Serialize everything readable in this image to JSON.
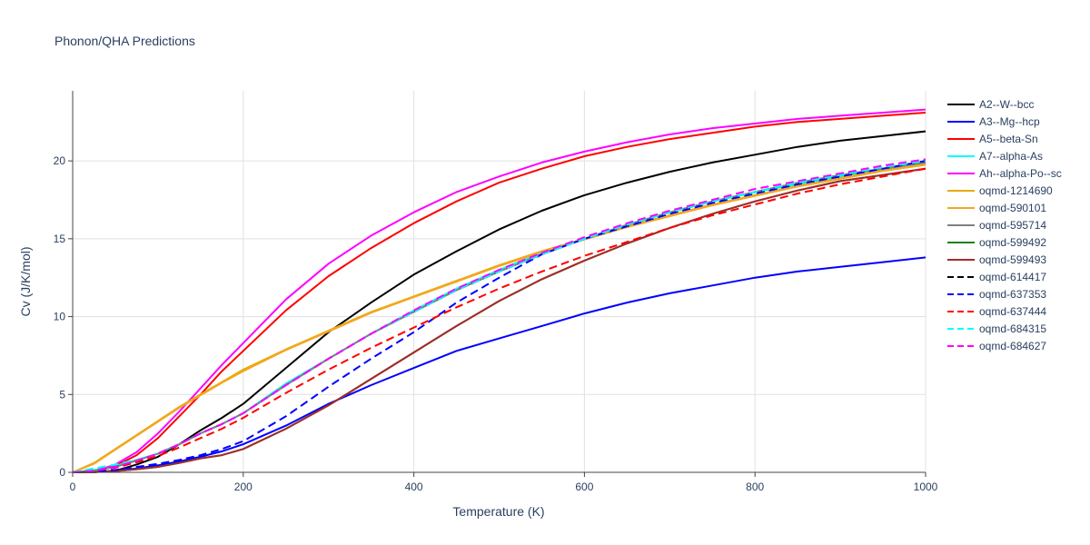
{
  "chart_data": {
    "type": "line",
    "title": "Phonon/QHA Predictions",
    "xlabel": "Temperature (K)",
    "ylabel": "Cv (J/K/mol)",
    "xlim": [
      0,
      1000
    ],
    "ylim": [
      0,
      24.5
    ],
    "xticks": [
      0,
      200,
      400,
      600,
      800,
      1000
    ],
    "yticks": [
      0,
      5,
      10,
      15,
      20
    ],
    "grid": true,
    "legend_position": "right",
    "series": [
      {
        "name": "A2--W--bcc",
        "color": "#000000",
        "dash": "solid",
        "x": [
          0,
          25,
          50,
          75,
          100,
          125,
          150,
          175,
          200,
          250,
          300,
          350,
          400,
          450,
          500,
          550,
          600,
          650,
          700,
          750,
          800,
          850,
          900,
          950,
          1000
        ],
        "y": [
          0,
          0.01,
          0.1,
          0.5,
          1.0,
          1.8,
          2.7,
          3.5,
          4.4,
          6.7,
          9.0,
          10.9,
          12.7,
          14.2,
          15.6,
          16.8,
          17.8,
          18.6,
          19.3,
          19.9,
          20.4,
          20.9,
          21.3,
          21.6,
          21.9
        ]
      },
      {
        "name": "A3--Mg--hcp",
        "color": "#0000ff",
        "dash": "solid",
        "x": [
          0,
          25,
          50,
          75,
          100,
          125,
          150,
          175,
          200,
          250,
          300,
          350,
          400,
          450,
          500,
          550,
          600,
          650,
          700,
          750,
          800,
          850,
          900,
          950,
          1000
        ],
        "y": [
          0,
          0.02,
          0.1,
          0.25,
          0.45,
          0.7,
          1.0,
          1.35,
          1.8,
          3.0,
          4.4,
          5.6,
          6.7,
          7.8,
          8.6,
          9.4,
          10.2,
          10.9,
          11.5,
          12.0,
          12.5,
          12.9,
          13.2,
          13.5,
          13.8
        ]
      },
      {
        "name": "A5--beta-Sn",
        "color": "#ff0000",
        "dash": "solid",
        "x": [
          0,
          25,
          50,
          75,
          100,
          125,
          150,
          175,
          200,
          250,
          300,
          350,
          400,
          450,
          500,
          550,
          600,
          650,
          700,
          750,
          800,
          850,
          900,
          950,
          1000
        ],
        "y": [
          0,
          0.05,
          0.4,
          1.1,
          2.2,
          3.6,
          5.0,
          6.5,
          7.8,
          10.4,
          12.6,
          14.4,
          16.0,
          17.4,
          18.6,
          19.5,
          20.3,
          20.9,
          21.4,
          21.8,
          22.2,
          22.5,
          22.7,
          22.9,
          23.1
        ]
      },
      {
        "name": "A7--alpha-As",
        "color": "#00ffff",
        "dash": "solid",
        "x": [
          0,
          25,
          50,
          75,
          100,
          125,
          150,
          175,
          200,
          250,
          300,
          350,
          400,
          450,
          500,
          550,
          600,
          650,
          700,
          750,
          800,
          850,
          900,
          950,
          1000
        ],
        "y": [
          0,
          0.15,
          0.4,
          0.8,
          1.2,
          1.8,
          2.5,
          3.1,
          3.8,
          5.7,
          7.3,
          8.9,
          10.4,
          11.8,
          13.0,
          14.1,
          15.0,
          15.9,
          16.7,
          17.4,
          18.0,
          18.5,
          19.0,
          19.4,
          19.9
        ]
      },
      {
        "name": "Ah--alpha-Po--sc",
        "color": "#ff00ff",
        "dash": "solid",
        "x": [
          0,
          25,
          50,
          75,
          100,
          125,
          150,
          175,
          200,
          250,
          300,
          350,
          400,
          450,
          500,
          550,
          600,
          650,
          700,
          750,
          800,
          850,
          900,
          950,
          1000
        ],
        "y": [
          0,
          0.05,
          0.5,
          1.3,
          2.5,
          3.9,
          5.4,
          6.9,
          8.3,
          11.1,
          13.4,
          15.2,
          16.7,
          18.0,
          19.0,
          19.9,
          20.6,
          21.2,
          21.7,
          22.1,
          22.4,
          22.7,
          22.9,
          23.1,
          23.3
        ]
      },
      {
        "name": "oqmd-1214690",
        "color": "#e6ab02",
        "dash": "solid",
        "x": [
          0,
          25,
          50,
          75,
          100,
          125,
          150,
          175,
          200,
          250,
          300,
          350,
          400,
          450,
          500,
          550,
          600,
          650,
          700,
          750,
          800,
          850,
          900,
          950,
          1000
        ],
        "y": [
          0,
          0.6,
          1.5,
          2.4,
          3.3,
          4.2,
          5.0,
          5.8,
          6.6,
          7.9,
          9.1,
          10.3,
          11.3,
          12.3,
          13.3,
          14.2,
          15.0,
          15.8,
          16.5,
          17.2,
          17.8,
          18.4,
          18.9,
          19.4,
          19.8
        ]
      },
      {
        "name": "oqmd-590101",
        "color": "#f5a623",
        "dash": "solid",
        "x": [
          0,
          25,
          50,
          75,
          100,
          125,
          150,
          175,
          200,
          250,
          300,
          350,
          400,
          450,
          500,
          550,
          600,
          650,
          700,
          750,
          800,
          850,
          900,
          950,
          1000
        ],
        "y": [
          0,
          0.55,
          1.45,
          2.35,
          3.25,
          4.15,
          4.95,
          5.75,
          6.5,
          7.85,
          9.05,
          10.25,
          11.25,
          12.25,
          13.25,
          14.15,
          14.95,
          15.75,
          16.45,
          17.15,
          17.75,
          18.35,
          18.85,
          19.35,
          19.75
        ]
      },
      {
        "name": "oqmd-595714",
        "color": "#7f7f7f",
        "dash": "solid",
        "x": [
          0,
          25,
          50,
          75,
          100,
          125,
          150,
          175,
          200,
          250,
          300,
          350,
          400,
          450,
          500,
          550,
          600,
          650,
          700,
          750,
          800,
          850,
          900,
          950,
          1000
        ],
        "y": [
          0,
          0.1,
          0.35,
          0.75,
          1.2,
          1.8,
          2.5,
          3.1,
          3.8,
          5.6,
          7.3,
          8.9,
          10.3,
          11.7,
          12.9,
          14.0,
          15.0,
          15.9,
          16.7,
          17.4,
          18.0,
          18.6,
          19.1,
          19.5,
          19.9
        ]
      },
      {
        "name": "oqmd-599492",
        "color": "#1a7f1a",
        "dash": "solid",
        "x": [
          0,
          25,
          50,
          75,
          100,
          125,
          150,
          175,
          200,
          250,
          300,
          350,
          400,
          450,
          500,
          550,
          600,
          650,
          700,
          750,
          800,
          850,
          900,
          950,
          1000
        ],
        "y": [
          0,
          0.02,
          0.08,
          0.2,
          0.35,
          0.6,
          0.9,
          1.1,
          1.5,
          2.8,
          4.3,
          6.0,
          7.7,
          9.4,
          11.0,
          12.4,
          13.6,
          14.7,
          15.7,
          16.6,
          17.4,
          18.1,
          18.7,
          19.1,
          19.5
        ]
      },
      {
        "name": "oqmd-599493",
        "color": "#a52a2a",
        "dash": "solid",
        "x": [
          0,
          25,
          50,
          75,
          100,
          125,
          150,
          175,
          200,
          250,
          300,
          350,
          400,
          450,
          500,
          550,
          600,
          650,
          700,
          750,
          800,
          850,
          900,
          950,
          1000
        ],
        "y": [
          0,
          0.02,
          0.08,
          0.2,
          0.35,
          0.6,
          0.9,
          1.1,
          1.5,
          2.8,
          4.3,
          6.0,
          7.7,
          9.4,
          11.0,
          12.4,
          13.6,
          14.7,
          15.7,
          16.6,
          17.4,
          18.1,
          18.7,
          19.1,
          19.5
        ]
      },
      {
        "name": "oqmd-614417",
        "color": "#000000",
        "dash": "dash",
        "x": [
          0,
          25,
          50,
          75,
          100,
          125,
          150,
          175,
          200,
          250,
          300,
          350,
          400,
          450,
          500,
          550,
          600,
          650,
          700,
          750,
          800,
          850,
          900,
          950,
          1000
        ],
        "y": [
          0,
          0.1,
          0.35,
          0.75,
          1.2,
          1.8,
          2.5,
          3.1,
          3.8,
          5.6,
          7.3,
          8.9,
          10.3,
          11.7,
          12.9,
          14.0,
          15.0,
          15.9,
          16.7,
          17.4,
          18.0,
          18.6,
          19.1,
          19.6,
          20.0
        ]
      },
      {
        "name": "oqmd-637353",
        "color": "#0000ff",
        "dash": "dash",
        "x": [
          0,
          25,
          50,
          75,
          100,
          125,
          150,
          175,
          200,
          250,
          300,
          350,
          400,
          450,
          500,
          550,
          600,
          650,
          700,
          750,
          800,
          850,
          900,
          950,
          1000
        ],
        "y": [
          0,
          0.05,
          0.15,
          0.35,
          0.55,
          0.8,
          1.1,
          1.5,
          2.0,
          3.6,
          5.5,
          7.3,
          9.0,
          10.9,
          12.5,
          14.0,
          15.0,
          15.8,
          16.6,
          17.3,
          17.9,
          18.5,
          19.0,
          19.5,
          20.0
        ]
      },
      {
        "name": "oqmd-637444",
        "color": "#ff0000",
        "dash": "dash",
        "x": [
          0,
          25,
          50,
          75,
          100,
          125,
          150,
          175,
          200,
          250,
          300,
          350,
          400,
          450,
          500,
          550,
          600,
          650,
          700,
          750,
          800,
          850,
          900,
          950,
          1000
        ],
        "y": [
          0,
          0.1,
          0.3,
          0.65,
          1.05,
          1.6,
          2.2,
          2.8,
          3.5,
          5.1,
          6.6,
          8.0,
          9.3,
          10.6,
          11.8,
          12.9,
          13.9,
          14.8,
          15.7,
          16.5,
          17.2,
          17.9,
          18.5,
          19.0,
          19.5
        ]
      },
      {
        "name": "oqmd-684315",
        "color": "#00ffff",
        "dash": "dash",
        "x": [
          0,
          25,
          50,
          75,
          100,
          125,
          150,
          175,
          200,
          250,
          300,
          350,
          400,
          450,
          500,
          550,
          600,
          650,
          700,
          750,
          800,
          850,
          900,
          950,
          1000
        ],
        "y": [
          0,
          0.25,
          0.5,
          0.8,
          1.2,
          1.8,
          2.5,
          3.1,
          3.8,
          5.6,
          7.3,
          8.9,
          10.3,
          11.7,
          12.9,
          14.0,
          15.0,
          15.9,
          16.7,
          17.4,
          18.0,
          18.6,
          19.1,
          19.6,
          20.0
        ]
      },
      {
        "name": "oqmd-684627",
        "color": "#ff00ff",
        "dash": "dash",
        "x": [
          0,
          25,
          50,
          75,
          100,
          125,
          150,
          175,
          200,
          250,
          300,
          350,
          400,
          450,
          500,
          550,
          600,
          650,
          700,
          750,
          800,
          850,
          900,
          950,
          1000
        ],
        "y": [
          0,
          0.1,
          0.35,
          0.75,
          1.2,
          1.8,
          2.5,
          3.1,
          3.8,
          5.6,
          7.3,
          8.9,
          10.4,
          11.8,
          13.0,
          14.1,
          15.1,
          16.0,
          16.8,
          17.5,
          18.2,
          18.7,
          19.2,
          19.7,
          20.1
        ]
      }
    ]
  }
}
